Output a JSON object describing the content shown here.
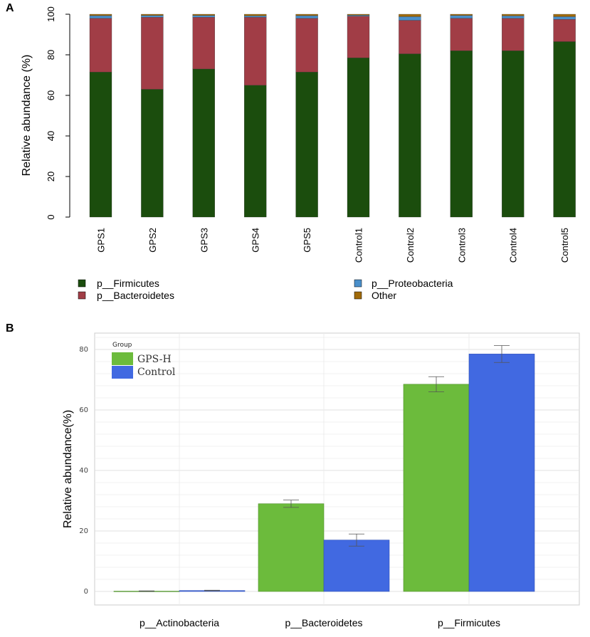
{
  "chart_data": [
    {
      "panel": "A",
      "type": "bar",
      "stacked": true,
      "ylabel": "Relative abundance (%)",
      "ylim": [
        0,
        100
      ],
      "yticks": [
        "0",
        "20",
        "40",
        "60",
        "80",
        "100"
      ],
      "categories": [
        "GPS1",
        "GPS2",
        "GPS3",
        "GPS4",
        "GPS5",
        "Control1",
        "Control2",
        "Control3",
        "Control4",
        "Control5"
      ],
      "series": [
        {
          "name": "p__Firmicutes",
          "color": "#1b4d0d",
          "values": [
            71.5,
            63,
            73,
            65,
            71.5,
            78.5,
            80.5,
            82,
            82,
            86.5
          ]
        },
        {
          "name": "p__Bacteroidetes",
          "color": "#a13d46",
          "values": [
            26.5,
            35.5,
            25.5,
            33.5,
            26.5,
            20.5,
            16.5,
            16,
            16,
            11
          ]
        },
        {
          "name": "p__Proteobacteria",
          "color": "#4a8fca",
          "values": [
            1.3,
            0.9,
            0.9,
            0.7,
            1.3,
            0.5,
            1.8,
            1.4,
            1.2,
            1.3
          ]
        },
        {
          "name": "Other",
          "color": "#a06a0a",
          "values": [
            0.7,
            0.6,
            0.6,
            0.8,
            0.7,
            0.5,
            1.2,
            0.6,
            0.8,
            1.2
          ]
        }
      ],
      "legend": [
        "p__Firmicutes",
        "p__Bacteroidetes",
        "p__Proteobacteria",
        "Other"
      ]
    },
    {
      "panel": "B",
      "type": "bar",
      "stacked": false,
      "ylabel": "Relative abundance(%)",
      "ylim": [
        0,
        84
      ],
      "yticks": [
        "0",
        "20",
        "40",
        "60",
        "80"
      ],
      "categories": [
        "p__Actinobacteria",
        "p__Bacteroidetes",
        "p__Firmicutes"
      ],
      "legend_title": "Group",
      "series": [
        {
          "name": "GPS-H",
          "color": "#6cbb3c",
          "values": [
            0.1,
            29,
            68.5
          ],
          "errors": [
            0.1,
            1.2,
            2.5
          ]
        },
        {
          "name": "Control",
          "color": "#4169e1",
          "values": [
            0.3,
            17,
            78.5
          ],
          "errors": [
            0.1,
            2.0,
            2.8
          ]
        }
      ]
    }
  ],
  "panel_labels": [
    "A",
    "B"
  ]
}
